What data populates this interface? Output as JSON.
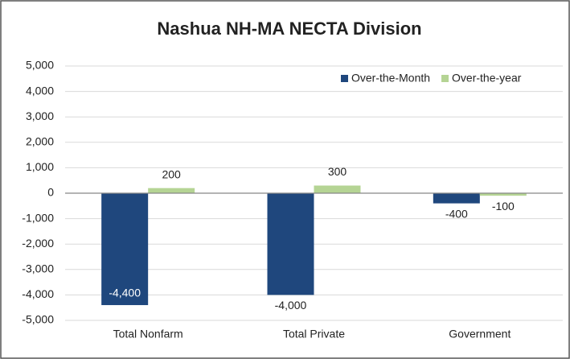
{
  "chart_data": {
    "type": "bar",
    "title": "Nashua NH-MA NECTA Division",
    "categories": [
      "Total Nonfarm",
      "Total Private",
      "Government"
    ],
    "series": [
      {
        "name": "Over-the-Month",
        "color": "#1f477d",
        "values": [
          -4400,
          -4000,
          -400
        ],
        "value_labels": [
          "-4,400",
          "-4,000",
          "-400"
        ]
      },
      {
        "name": "Over-the-year",
        "color": "#b5d494",
        "values": [
          200,
          300,
          -100
        ],
        "value_labels": [
          "200",
          "300",
          "-100"
        ]
      }
    ],
    "ylim": [
      -5000,
      5000
    ],
    "yticks": [
      {
        "value": -5000,
        "label": "-5,000"
      },
      {
        "value": -4000,
        "label": "-4,000"
      },
      {
        "value": -3000,
        "label": "-3,000"
      },
      {
        "value": -2000,
        "label": "-2,000"
      },
      {
        "value": -1000,
        "label": "-1,000"
      },
      0,
      {
        "value": 1000,
        "label": "1,000"
      },
      {
        "value": 2000,
        "label": "2,000"
      },
      {
        "value": 3000,
        "label": "3,000"
      },
      {
        "value": 4000,
        "label": "4,000"
      },
      {
        "value": 5000,
        "label": "5,000"
      }
    ],
    "grid": true,
    "legend": "top-right"
  }
}
